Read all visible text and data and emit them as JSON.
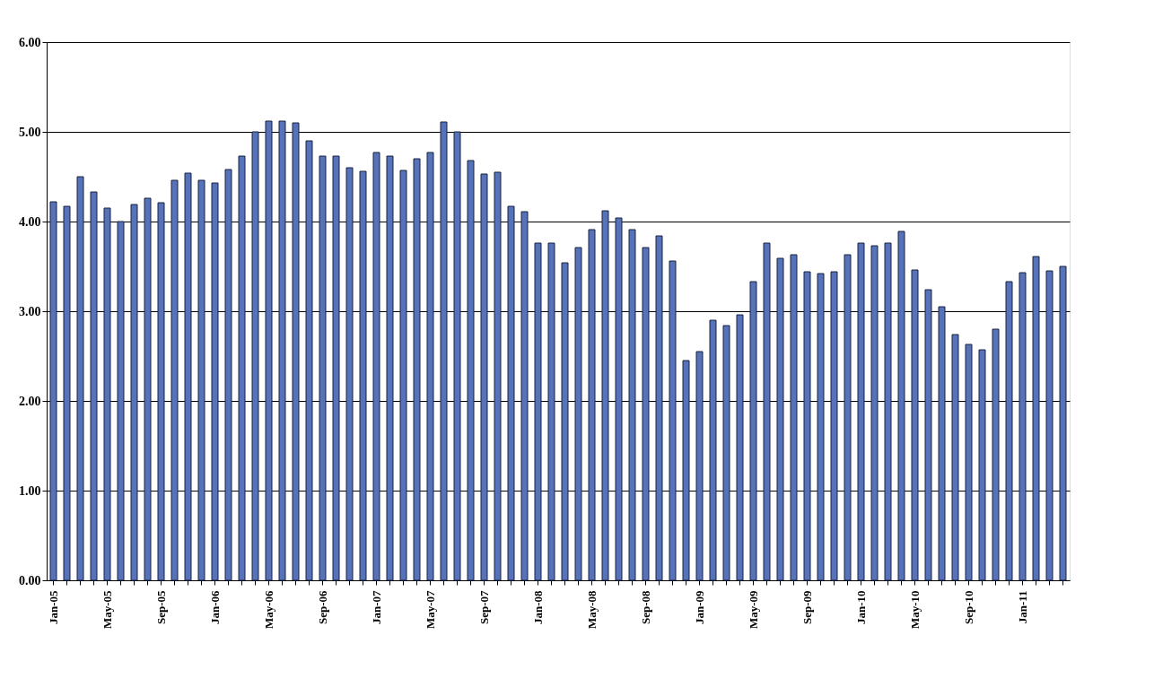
{
  "chart_data": {
    "type": "bar",
    "categories": [
      "Jan-05",
      null,
      null,
      null,
      "May-05",
      null,
      null,
      null,
      "Sep-05",
      null,
      null,
      null,
      "Jan-06",
      null,
      null,
      null,
      "May-06",
      null,
      null,
      null,
      "Sep-06",
      null,
      null,
      null,
      "Jan-07",
      null,
      null,
      null,
      "May-07",
      null,
      null,
      null,
      "Sep-07",
      null,
      null,
      null,
      "Jan-08",
      null,
      null,
      null,
      "May-08",
      null,
      null,
      null,
      "Sep-08",
      null,
      null,
      null,
      "Jan-09",
      null,
      null,
      null,
      "May-09",
      null,
      null,
      null,
      "Sep-09",
      null,
      null,
      null,
      "Jan-10",
      null,
      null,
      null,
      "May-10",
      null,
      null,
      null,
      "Sep-10",
      null,
      null,
      null,
      "Jan-11",
      null,
      null,
      null
    ],
    "values": [
      4.22,
      4.17,
      4.5,
      4.33,
      4.15,
      4.0,
      4.19,
      4.26,
      4.21,
      4.46,
      4.54,
      4.46,
      4.43,
      4.58,
      4.73,
      5.0,
      5.12,
      5.12,
      5.1,
      4.9,
      4.73,
      4.73,
      4.6,
      4.56,
      4.77,
      4.73,
      4.57,
      4.7,
      4.77,
      5.11,
      5.0,
      4.68,
      4.53,
      4.55,
      4.17,
      4.11,
      3.76,
      3.76,
      3.54,
      3.71,
      3.91,
      4.12,
      4.04,
      3.91,
      3.71,
      3.84,
      3.56,
      2.45,
      2.55,
      2.9,
      2.84,
      2.96,
      3.33,
      3.76,
      3.59,
      3.63,
      3.44,
      3.42,
      3.44,
      3.63,
      3.76,
      3.73,
      3.76,
      3.89,
      3.46,
      3.24,
      3.05,
      2.74,
      2.63,
      2.57,
      2.8,
      3.33,
      3.43,
      3.61,
      3.45,
      3.5
    ],
    "color": "#5672b8",
    "ylim": [
      0,
      6
    ],
    "yticks": [
      {
        "value": 0,
        "label": "0.00"
      },
      {
        "value": 1,
        "label": "1.00"
      },
      {
        "value": 2,
        "label": "2.00"
      },
      {
        "value": 3,
        "label": "3.00"
      },
      {
        "value": 4,
        "label": "4.00"
      },
      {
        "value": 5,
        "label": "5.00"
      },
      {
        "value": 6,
        "label": "6.00"
      }
    ],
    "grid": "y"
  }
}
